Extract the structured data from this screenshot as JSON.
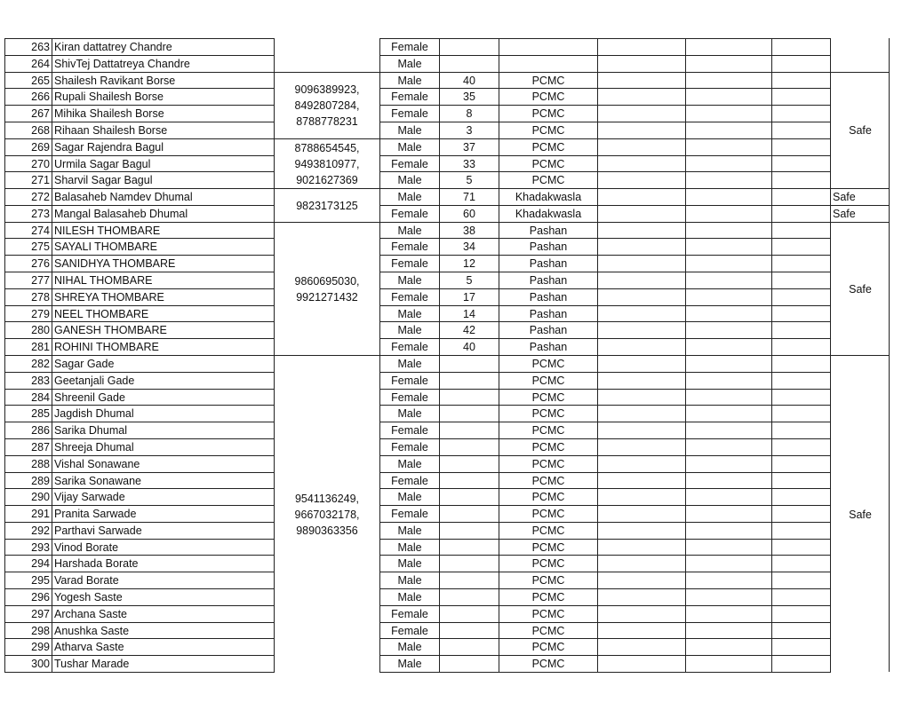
{
  "rows": [
    {
      "no": "263",
      "name": "Kiran dattatrey Chandre",
      "gender": "Female",
      "age": "",
      "location": ""
    },
    {
      "no": "264",
      "name": "ShivTej Dattatreya Chandre",
      "gender": "Male",
      "age": "",
      "location": ""
    },
    {
      "no": "265",
      "name": "Shailesh Ravikant Borse",
      "gender": "Male",
      "age": "40",
      "location": "PCMC"
    },
    {
      "no": "266",
      "name": "Rupali Shailesh Borse",
      "gender": "Female",
      "age": "35",
      "location": "PCMC"
    },
    {
      "no": "267",
      "name": "Mihika Shailesh Borse",
      "gender": "Female",
      "age": "8",
      "location": "PCMC"
    },
    {
      "no": "268",
      "name": "Rihaan Shailesh Borse",
      "gender": "Male",
      "age": "3",
      "location": "PCMC"
    },
    {
      "no": "269",
      "name": "Sagar Rajendra Bagul",
      "gender": "Male",
      "age": "37",
      "location": "PCMC"
    },
    {
      "no": "270",
      "name": "Urmila Sagar Bagul",
      "gender": "Female",
      "age": "33",
      "location": "PCMC"
    },
    {
      "no": "271",
      "name": "Sharvil Sagar Bagul",
      "gender": "Male",
      "age": "5",
      "location": "PCMC"
    },
    {
      "no": "272",
      "name": "Balasaheb Namdev Dhumal",
      "gender": "Male",
      "age": "71",
      "location": "Khadakwasla"
    },
    {
      "no": "273",
      "name": "Mangal Balasaheb Dhumal",
      "gender": "Female",
      "age": "60",
      "location": "Khadakwasla"
    },
    {
      "no": "274",
      "name": "NILESH THOMBARE",
      "gender": "Male",
      "age": "38",
      "location": "Pashan"
    },
    {
      "no": "275",
      "name": "SAYALI THOMBARE",
      "gender": "Female",
      "age": "34",
      "location": "Pashan"
    },
    {
      "no": "276",
      "name": "SANIDHYA THOMBARE",
      "gender": "Female",
      "age": "12",
      "location": "Pashan"
    },
    {
      "no": "277",
      "name": "NIHAL THOMBARE",
      "gender": "Male",
      "age": "5",
      "location": "Pashan"
    },
    {
      "no": "278",
      "name": "SHREYA THOMBARE",
      "gender": "Female",
      "age": "17",
      "location": "Pashan"
    },
    {
      "no": "279",
      "name": "NEEL THOMBARE",
      "gender": "Male",
      "age": "14",
      "location": "Pashan"
    },
    {
      "no": "280",
      "name": "GANESH THOMBARE",
      "gender": "Male",
      "age": "42",
      "location": "Pashan"
    },
    {
      "no": "281",
      "name": "ROHINI THOMBARE",
      "gender": "Female",
      "age": "40",
      "location": "Pashan"
    },
    {
      "no": "282",
      "name": "Sagar Gade",
      "gender": "Male",
      "age": "",
      "location": "PCMC"
    },
    {
      "no": "283",
      "name": "Geetanjali Gade",
      "gender": "Female",
      "age": "",
      "location": "PCMC"
    },
    {
      "no": "284",
      "name": "Shreenil Gade",
      "gender": "Female",
      "age": "",
      "location": "PCMC"
    },
    {
      "no": "285",
      "name": "Jagdish Dhumal",
      "gender": "Male",
      "age": "",
      "location": "PCMC"
    },
    {
      "no": "286",
      "name": "Sarika Dhumal",
      "gender": "Female",
      "age": "",
      "location": "PCMC"
    },
    {
      "no": "287",
      "name": "Shreeja Dhumal",
      "gender": "Female",
      "age": "",
      "location": "PCMC"
    },
    {
      "no": "288",
      "name": "Vishal Sonawane",
      "gender": "Male",
      "age": "",
      "location": "PCMC"
    },
    {
      "no": "289",
      "name": "Sarika Sonawane",
      "gender": "Female",
      "age": "",
      "location": "PCMC"
    },
    {
      "no": "290",
      "name": "Vijay Sarwade",
      "gender": "Male",
      "age": "",
      "location": "PCMC"
    },
    {
      "no": "291",
      "name": "Pranita Sarwade",
      "gender": "Female",
      "age": "",
      "location": "PCMC"
    },
    {
      "no": "292",
      "name": "Parthavi Sarwade",
      "gender": "Male",
      "age": "",
      "location": "PCMC"
    },
    {
      "no": "293",
      "name": "Vinod Borate",
      "gender": "Male",
      "age": "",
      "location": "PCMC"
    },
    {
      "no": "294",
      "name": "Harshada Borate",
      "gender": "Male",
      "age": "",
      "location": "PCMC"
    },
    {
      "no": "295",
      "name": "Varad Borate",
      "gender": "Male",
      "age": "",
      "location": "PCMC"
    },
    {
      "no": "296",
      "name": "Yogesh Saste",
      "gender": "Male",
      "age": "",
      "location": "PCMC"
    },
    {
      "no": "297",
      "name": "Archana Saste",
      "gender": "Female",
      "age": "",
      "location": "PCMC"
    },
    {
      "no": "298",
      "name": "Anushka Saste",
      "gender": "Female",
      "age": "",
      "location": "PCMC"
    },
    {
      "no": "299",
      "name": "Atharva Saste",
      "gender": "Male",
      "age": "",
      "location": "PCMC"
    },
    {
      "no": "300",
      "name": "Tushar Marade",
      "gender": "Male",
      "age": "",
      "location": "PCMC"
    }
  ],
  "phone_groups": [
    {
      "first": 263,
      "last": 264,
      "numbers": []
    },
    {
      "first": 265,
      "last": 268,
      "numbers": [
        "9096389923,",
        "8492807284,",
        "8788778231"
      ]
    },
    {
      "first": 269,
      "last": 271,
      "numbers": [
        "8788654545,",
        "9493810977,",
        "9021627369"
      ]
    },
    {
      "first": 272,
      "last": 273,
      "numbers": [
        "9823173125"
      ]
    },
    {
      "first": 274,
      "last": 281,
      "numbers": [
        "9860695030,",
        "9921271432"
      ]
    },
    {
      "first": 282,
      "last": 300,
      "numbers": [
        "9541136249,",
        "9667032178,",
        "9890363356"
      ]
    }
  ],
  "status_groups": [
    {
      "first": 263,
      "last": 264,
      "status": "",
      "align": "center"
    },
    {
      "first": 265,
      "last": 271,
      "status": "Safe",
      "align": "center"
    },
    {
      "first": 272,
      "last": 272,
      "status": "Safe",
      "align": "left"
    },
    {
      "first": 273,
      "last": 273,
      "status": "Safe",
      "align": "left"
    },
    {
      "first": 274,
      "last": 281,
      "status": "Safe",
      "align": "center"
    },
    {
      "first": 282,
      "last": 300,
      "status": "Safe",
      "align": "center"
    }
  ]
}
